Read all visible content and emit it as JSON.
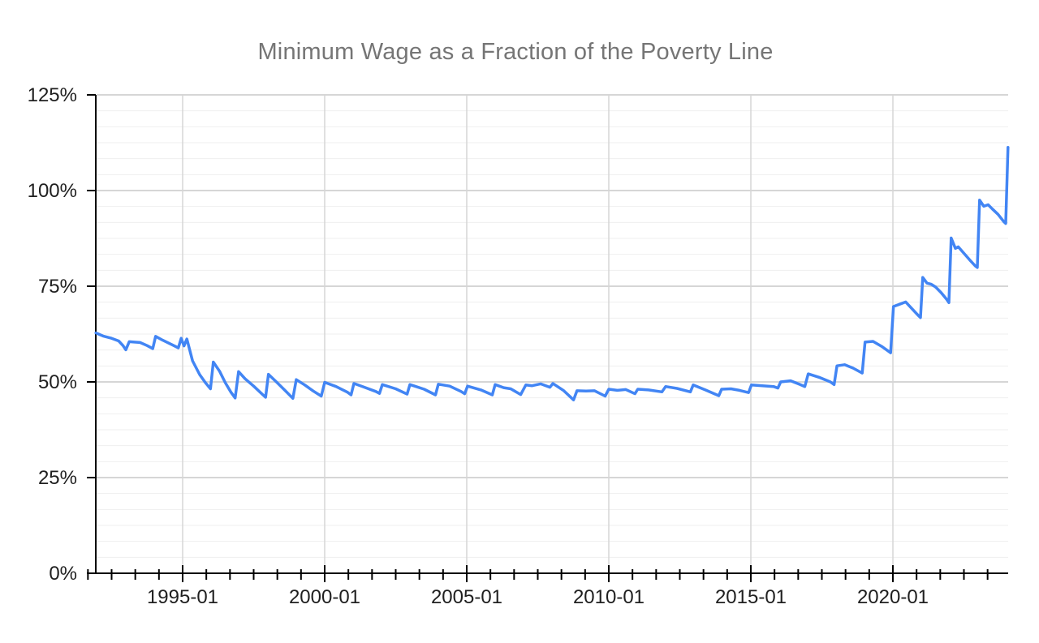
{
  "chart_data": {
    "type": "line",
    "title": "Minimum Wage as a Fraction of the Poverty Line",
    "legend": "none",
    "grid": true,
    "x_axis": {
      "tick_labels": [
        "1995-01",
        "2000-01",
        "2005-01",
        "2010-01",
        "2015-01",
        "2020-01"
      ],
      "tick_values": [
        1995,
        2000,
        2005,
        2010,
        2015,
        2020
      ],
      "range": [
        1991.943,
        2024.057
      ],
      "major_interval_years": 5,
      "minor_divisions_per_major": 6
    },
    "y_axis": {
      "tick_labels": [
        "0%",
        "25%",
        "50%",
        "75%",
        "100%",
        "125%"
      ],
      "tick_values": [
        0,
        25,
        50,
        75,
        100,
        125
      ],
      "range": [
        0,
        125
      ],
      "major_interval_pct": 25,
      "minor_divisions_per_major": 6
    },
    "series": [
      {
        "points": [
          [
            1991.95,
            62.8
          ],
          [
            1992.2,
            62.0
          ],
          [
            1992.5,
            61.4
          ],
          [
            1992.75,
            60.7
          ],
          [
            1992.9,
            59.5
          ],
          [
            1993.0,
            58.4
          ],
          [
            1993.12,
            60.5
          ],
          [
            1993.3,
            60.4
          ],
          [
            1993.5,
            60.3
          ],
          [
            1993.75,
            59.5
          ],
          [
            1993.95,
            58.7
          ],
          [
            1994.05,
            61.9
          ],
          [
            1994.3,
            60.9
          ],
          [
            1994.6,
            59.8
          ],
          [
            1994.85,
            58.9
          ],
          [
            1994.95,
            61.4
          ],
          [
            1995.05,
            59.4
          ],
          [
            1995.15,
            61.2
          ],
          [
            1995.35,
            55.5
          ],
          [
            1995.6,
            51.9
          ],
          [
            1995.8,
            49.8
          ],
          [
            1995.98,
            48.2
          ],
          [
            1996.08,
            55.2
          ],
          [
            1996.3,
            52.8
          ],
          [
            1996.5,
            49.8
          ],
          [
            1996.7,
            47.3
          ],
          [
            1996.85,
            45.8
          ],
          [
            1996.97,
            52.7
          ],
          [
            1997.2,
            50.8
          ],
          [
            1997.5,
            48.9
          ],
          [
            1997.8,
            46.8
          ],
          [
            1997.92,
            46.0
          ],
          [
            1998.02,
            52.0
          ],
          [
            1998.3,
            50.0
          ],
          [
            1998.6,
            47.8
          ],
          [
            1998.88,
            45.7
          ],
          [
            1999.0,
            50.6
          ],
          [
            1999.3,
            49.2
          ],
          [
            1999.6,
            47.6
          ],
          [
            1999.88,
            46.3
          ],
          [
            2000.0,
            49.9
          ],
          [
            2000.4,
            48.8
          ],
          [
            2000.8,
            47.3
          ],
          [
            2000.93,
            46.6
          ],
          [
            2001.03,
            49.6
          ],
          [
            2001.4,
            48.6
          ],
          [
            2001.8,
            47.5
          ],
          [
            2001.93,
            47.0
          ],
          [
            2002.03,
            49.3
          ],
          [
            2002.5,
            48.2
          ],
          [
            2002.9,
            46.8
          ],
          [
            2003.0,
            49.3
          ],
          [
            2003.5,
            48.1
          ],
          [
            2003.9,
            46.6
          ],
          [
            2004.0,
            49.4
          ],
          [
            2004.4,
            48.9
          ],
          [
            2004.8,
            47.5
          ],
          [
            2004.93,
            46.9
          ],
          [
            2005.03,
            48.9
          ],
          [
            2005.5,
            47.9
          ],
          [
            2005.9,
            46.6
          ],
          [
            2006.0,
            49.3
          ],
          [
            2006.3,
            48.5
          ],
          [
            2006.55,
            48.2
          ],
          [
            2006.9,
            46.7
          ],
          [
            2007.08,
            49.2
          ],
          [
            2007.3,
            49.0
          ],
          [
            2007.6,
            49.5
          ],
          [
            2007.93,
            48.6
          ],
          [
            2008.03,
            49.6
          ],
          [
            2008.4,
            47.8
          ],
          [
            2008.76,
            45.3
          ],
          [
            2008.88,
            47.7
          ],
          [
            2009.2,
            47.6
          ],
          [
            2009.5,
            47.7
          ],
          [
            2009.87,
            46.3
          ],
          [
            2010.0,
            48.1
          ],
          [
            2010.3,
            47.8
          ],
          [
            2010.6,
            48.0
          ],
          [
            2010.92,
            46.9
          ],
          [
            2011.02,
            48.1
          ],
          [
            2011.4,
            47.9
          ],
          [
            2011.87,
            47.4
          ],
          [
            2012.0,
            48.8
          ],
          [
            2012.4,
            48.3
          ],
          [
            2012.87,
            47.4
          ],
          [
            2012.97,
            49.2
          ],
          [
            2013.4,
            47.9
          ],
          [
            2013.87,
            46.4
          ],
          [
            2013.97,
            48.1
          ],
          [
            2014.3,
            48.2
          ],
          [
            2014.6,
            47.8
          ],
          [
            2014.92,
            47.2
          ],
          [
            2015.02,
            49.2
          ],
          [
            2015.4,
            49.0
          ],
          [
            2015.8,
            48.8
          ],
          [
            2015.95,
            48.4
          ],
          [
            2016.05,
            50.0
          ],
          [
            2016.4,
            50.3
          ],
          [
            2016.7,
            49.4
          ],
          [
            2016.9,
            48.8
          ],
          [
            2017.02,
            52.1
          ],
          [
            2017.4,
            51.2
          ],
          [
            2017.8,
            50.0
          ],
          [
            2017.93,
            49.3
          ],
          [
            2018.03,
            54.2
          ],
          [
            2018.3,
            54.5
          ],
          [
            2018.6,
            53.6
          ],
          [
            2018.92,
            52.3
          ],
          [
            2019.02,
            60.4
          ],
          [
            2019.3,
            60.6
          ],
          [
            2019.6,
            59.3
          ],
          [
            2019.92,
            57.6
          ],
          [
            2020.02,
            69.7
          ],
          [
            2020.2,
            70.2
          ],
          [
            2020.45,
            70.9
          ],
          [
            2020.7,
            68.9
          ],
          [
            2020.9,
            67.3
          ],
          [
            2020.97,
            66.8
          ],
          [
            2021.05,
            77.3
          ],
          [
            2021.2,
            75.8
          ],
          [
            2021.35,
            75.5
          ],
          [
            2021.5,
            74.8
          ],
          [
            2021.7,
            73.3
          ],
          [
            2021.9,
            71.5
          ],
          [
            2021.97,
            70.7
          ],
          [
            2022.05,
            87.6
          ],
          [
            2022.2,
            84.9
          ],
          [
            2022.3,
            85.3
          ],
          [
            2022.5,
            83.6
          ],
          [
            2022.7,
            81.9
          ],
          [
            2022.9,
            80.3
          ],
          [
            2022.97,
            79.9
          ],
          [
            2023.05,
            97.5
          ],
          [
            2023.2,
            95.9
          ],
          [
            2023.35,
            96.3
          ],
          [
            2023.5,
            95.2
          ],
          [
            2023.7,
            93.8
          ],
          [
            2023.9,
            91.9
          ],
          [
            2023.97,
            91.4
          ],
          [
            2024.05,
            111.3
          ]
        ]
      }
    ],
    "colors": {
      "line": "#4285f4",
      "title": "#757575",
      "axis": "#000000",
      "tick_label": "#202020",
      "major_gridline": "#d6d6d6",
      "minor_gridline": "#efefef",
      "background": "#ffffff"
    }
  }
}
